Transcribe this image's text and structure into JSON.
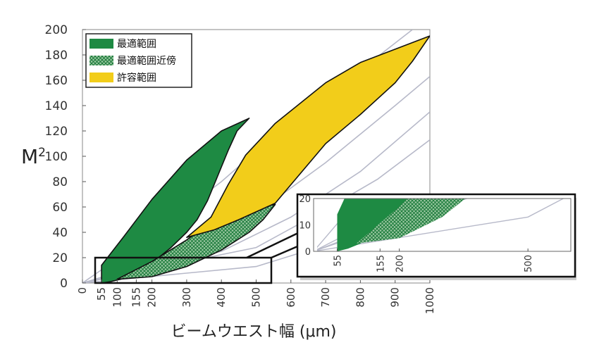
{
  "chart_data": {
    "type": "area",
    "title": "",
    "xlabel": "ビームウエスト幅 (μm)",
    "ylabel": "M",
    "ylabel_sup": "2",
    "xlim": [
      0,
      1000
    ],
    "ylim": [
      0,
      200
    ],
    "x_ticks": [
      0,
      55,
      100,
      155,
      200,
      300,
      400,
      500,
      600,
      700,
      800,
      900,
      1000
    ],
    "y_ticks": [
      0,
      20,
      40,
      60,
      80,
      100,
      120,
      140,
      160,
      180,
      200
    ],
    "legend_position": "top-left",
    "grid": false,
    "series": [
      {
        "name": "最適範囲",
        "color": "#1e8a43",
        "pattern": "solid",
        "polygon": [
          [
            55,
            0
          ],
          [
            55,
            14
          ],
          [
            120,
            37
          ],
          [
            200,
            66
          ],
          [
            300,
            97
          ],
          [
            400,
            120
          ],
          [
            480,
            130
          ],
          [
            445,
            120
          ],
          [
            420,
            105
          ],
          [
            390,
            85
          ],
          [
            360,
            65
          ],
          [
            330,
            50
          ],
          [
            300,
            40
          ],
          [
            255,
            28
          ],
          [
            210,
            18
          ],
          [
            160,
            9
          ],
          [
            110,
            3
          ],
          [
            80,
            1
          ]
        ]
      },
      {
        "name": "最適範囲近傍",
        "color": "#1e8a43",
        "pattern": "hatched",
        "polygon": [
          [
            100,
            3
          ],
          [
            200,
            17
          ],
          [
            300,
            34
          ],
          [
            350,
            44
          ],
          [
            420,
            52
          ],
          [
            500,
            59
          ],
          [
            555,
            62
          ],
          [
            520,
            50
          ],
          [
            480,
            40
          ],
          [
            400,
            26
          ],
          [
            300,
            13
          ],
          [
            200,
            5
          ]
        ]
      },
      {
        "name": "許容範囲",
        "color": "#f2cd1a",
        "pattern": "solid",
        "polygon": [
          [
            300,
            36
          ],
          [
            370,
            52
          ],
          [
            420,
            78
          ],
          [
            470,
            101
          ],
          [
            555,
            126
          ],
          [
            700,
            158
          ],
          [
            800,
            174
          ],
          [
            1000,
            195
          ],
          [
            950,
            175
          ],
          [
            900,
            158
          ],
          [
            800,
            133
          ],
          [
            700,
            110
          ],
          [
            555,
            63
          ],
          [
            450,
            50
          ],
          [
            380,
            42
          ]
        ]
      }
    ],
    "reference_curves": [
      [
        [
          0,
          0
        ],
        [
          200,
          38
        ],
        [
          400,
          80
        ],
        [
          600,
          128
        ],
        [
          800,
          168
        ],
        [
          950,
          200
        ]
      ],
      [
        [
          0,
          0
        ],
        [
          300,
          25
        ],
        [
          500,
          55
        ],
        [
          700,
          95
        ],
        [
          900,
          140
        ],
        [
          1000,
          163
        ]
      ],
      [
        [
          0,
          0
        ],
        [
          400,
          25
        ],
        [
          600,
          52
        ],
        [
          800,
          88
        ],
        [
          1000,
          135
        ]
      ],
      [
        [
          0,
          0
        ],
        [
          500,
          28
        ],
        [
          700,
          58
        ],
        [
          850,
          82
        ],
        [
          1000,
          113
        ]
      ],
      [
        [
          0,
          0
        ],
        [
          500,
          13
        ],
        [
          700,
          30
        ],
        [
          850,
          45
        ],
        [
          1000,
          63
        ]
      ]
    ],
    "inset": {
      "xlim": [
        0,
        600
      ],
      "ylim": [
        0,
        20
      ],
      "x_ticks": [
        55,
        155,
        200,
        500
      ],
      "y_ticks": [
        0,
        10,
        20
      ]
    }
  }
}
